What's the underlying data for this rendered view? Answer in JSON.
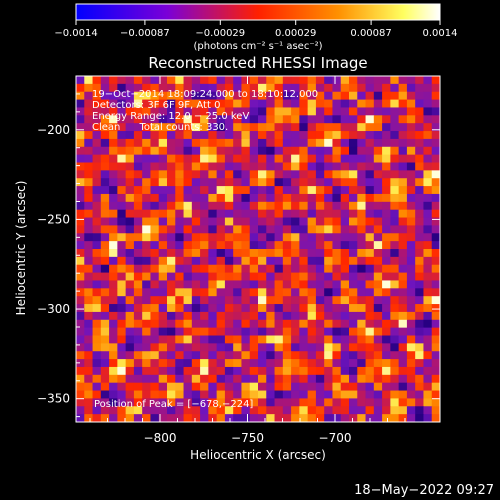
{
  "chart_data": {
    "type": "heatmap",
    "title": "Reconstructed RHESSI Image",
    "xlabel": "Heliocentric X (arcsec)",
    "ylabel": "Heliocentric Y (arcsec)",
    "xlim": [
      -848,
      -640
    ],
    "ylim": [
      -363,
      -170
    ],
    "x_ticks": [
      -800,
      -750,
      -700
    ],
    "y_ticks": [
      -200,
      -250,
      -300,
      -350
    ],
    "x_tick_labels": [
      "−800",
      "−750",
      "−700"
    ],
    "y_tick_labels": [
      "−200",
      "−250",
      "−300",
      "−350"
    ],
    "colorbar": {
      "range": [
        -0.0014,
        0.0014
      ],
      "ticks": [
        -0.0014,
        -0.00087,
        -0.00029,
        0.00029,
        0.00087,
        0.0014
      ],
      "tick_labels": [
        "−0.0014",
        "−0.00087",
        "−0.00029",
        "0.00029",
        "0.00087",
        "0.0014"
      ],
      "unit_label": "(photons cm⁻² s⁻¹ asec⁻²)",
      "colors": [
        "#0000ff",
        "#7a00d8",
        "#ff2000",
        "#ff9000",
        "#ffff60",
        "#ffffff"
      ]
    },
    "annotations": [
      "19−Oct−2014 18:09:24.000 to 18:10:12.000",
      "Detectors: 3F 6F 9F, Att 0",
      "Energy Range: 12.0 − 25.0 keV",
      "Clean      Total counts: 330."
    ],
    "peak_label": "Position of Peak = [−678,−224]",
    "peak": [
      -678,
      -224
    ]
  },
  "footer": {
    "timestamp": "18−May−2022 09:27"
  }
}
